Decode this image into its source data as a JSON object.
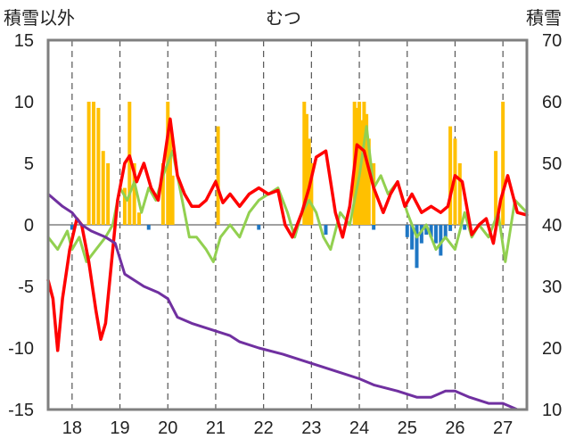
{
  "chart_data": {
    "type": "line",
    "title": "むつ",
    "ylabel_left": "積雪以外",
    "ylabel_right": "積雪",
    "ylim_left": [
      -15,
      15
    ],
    "ylim_right": [
      10,
      70
    ],
    "yticks_left": [
      "15",
      "10",
      "5",
      "0",
      "-5",
      "-10",
      "-15"
    ],
    "yticks_right": [
      "70",
      "60",
      "50",
      "40",
      "30",
      "20",
      "10"
    ],
    "xlim": [
      17.5,
      27.5
    ],
    "xticks": [
      "18",
      "19",
      "20",
      "21",
      "22",
      "23",
      "24",
      "25",
      "26",
      "27"
    ],
    "grid": "vertical dashed at each day",
    "bars_yellow": {
      "color": "#FFC000",
      "x": [
        18.35,
        18.45,
        18.55,
        18.65,
        18.75,
        19.1,
        19.2,
        19.3,
        19.4,
        19.9,
        20.0,
        20.05,
        20.1,
        21.05,
        22.85,
        22.9,
        22.95,
        23.0,
        23.9,
        23.95,
        24.0,
        24.05,
        24.1,
        24.15,
        24.2,
        24.3,
        25.9,
        26.0,
        26.1,
        26.85,
        27.0
      ],
      "values": [
        10,
        10,
        9.5,
        6,
        5,
        3,
        10,
        5,
        1,
        5,
        10,
        8,
        4,
        8,
        10,
        9,
        7,
        5,
        10,
        9.5,
        10,
        8.5,
        10,
        9,
        7,
        5,
        8,
        7,
        5,
        6,
        10
      ]
    },
    "bars_blue": {
      "color": "#1F77C4",
      "x": [
        18.0,
        19.6,
        21.9,
        23.3,
        24.3,
        25.0,
        25.1,
        25.2,
        25.3,
        25.4,
        25.5,
        25.6,
        25.7,
        25.8,
        25.9,
        26.2
      ],
      "values": [
        -0.4,
        -0.4,
        -0.4,
        -0.8,
        -0.4,
        -1.0,
        -2.0,
        -3.5,
        -1.5,
        -0.8,
        -1.0,
        -1.5,
        -2.5,
        -1.0,
        -0.5,
        -0.4
      ]
    },
    "series": [
      {
        "axis": "left",
        "color": "#FF0000",
        "x": [
          17.5,
          17.6,
          17.7,
          17.8,
          17.95,
          18.1,
          18.2,
          18.35,
          18.5,
          18.6,
          18.7,
          18.8,
          18.95,
          19.1,
          19.2,
          19.35,
          19.5,
          19.65,
          19.8,
          19.95,
          20.05,
          20.2,
          20.35,
          20.5,
          20.65,
          20.8,
          21.0,
          21.15,
          21.3,
          21.5,
          21.7,
          21.9,
          22.1,
          22.3,
          22.45,
          22.6,
          22.8,
          22.95,
          23.1,
          23.3,
          23.5,
          23.65,
          23.8,
          23.95,
          24.1,
          24.3,
          24.5,
          24.65,
          24.8,
          24.95,
          25.1,
          25.3,
          25.5,
          25.7,
          25.85,
          26.0,
          26.15,
          26.35,
          26.5,
          26.65,
          26.8,
          26.95,
          27.1,
          27.3,
          27.5
        ],
        "values": [
          -4.5,
          -6,
          -10.2,
          -6,
          -2,
          0.5,
          0,
          -3,
          -7,
          -9.3,
          -8,
          -4,
          2,
          5,
          5.6,
          3.5,
          5,
          3,
          2,
          6,
          8.6,
          4,
          2.5,
          1.5,
          1.5,
          2,
          3.5,
          1.8,
          2.5,
          1.5,
          2.5,
          3,
          2.5,
          2.8,
          0,
          -1,
          1,
          3,
          5.5,
          6,
          1,
          -1,
          1.5,
          6.5,
          6,
          3,
          1,
          2.5,
          3.5,
          1.5,
          2.5,
          1,
          1.5,
          1,
          1.5,
          4,
          3.5,
          -0.8,
          0,
          0.5,
          -1.5,
          2,
          4,
          1,
          0.8
        ]
      },
      {
        "axis": "left",
        "color": "#92D050",
        "x": [
          17.5,
          17.7,
          17.9,
          18.0,
          18.15,
          18.3,
          18.5,
          18.7,
          18.85,
          19.0,
          19.15,
          19.3,
          19.45,
          19.6,
          19.75,
          19.9,
          20.1,
          20.3,
          20.45,
          20.6,
          20.8,
          20.95,
          21.1,
          21.3,
          21.5,
          21.7,
          21.9,
          22.1,
          22.3,
          22.5,
          22.65,
          22.8,
          22.95,
          23.1,
          23.25,
          23.4,
          23.6,
          23.8,
          24.0,
          24.15,
          24.3,
          24.45,
          24.6,
          24.8,
          25.0,
          25.2,
          25.4,
          25.6,
          25.8,
          26.0,
          26.2,
          26.35,
          26.5,
          26.7,
          26.9,
          27.05,
          27.25,
          27.5
        ],
        "values": [
          -1,
          -2,
          -0.5,
          -2,
          -1,
          -3,
          -2,
          -1,
          0,
          3,
          2,
          3.5,
          1,
          3,
          2,
          4,
          6,
          2,
          -1,
          -1,
          -2,
          -3,
          -1,
          0,
          -1,
          1,
          2,
          2.5,
          3,
          1,
          -1,
          1,
          2,
          1,
          -1,
          -2,
          1,
          0,
          4,
          8,
          3,
          4,
          2.5,
          3.5,
          1,
          -1,
          0,
          -2,
          -1,
          -2,
          1,
          -1,
          0,
          -1,
          1,
          -3,
          2,
          1
        ]
      },
      {
        "axis": "right",
        "color": "#7030A0",
        "x": [
          17.5,
          17.8,
          18.0,
          18.2,
          18.4,
          18.7,
          18.9,
          19.1,
          19.3,
          19.5,
          19.8,
          20.0,
          20.2,
          20.5,
          20.9,
          21.3,
          21.5,
          21.9,
          22.4,
          22.8,
          23.2,
          23.6,
          24.0,
          24.3,
          24.8,
          25.2,
          25.5,
          25.8,
          26.0,
          26.3,
          26.7,
          27.0,
          27.3,
          27.5
        ],
        "values": [
          45,
          43,
          42,
          40,
          39,
          38,
          37,
          32,
          31,
          30,
          29,
          28,
          25,
          24,
          23,
          22,
          21,
          20,
          19,
          18,
          17,
          16,
          15,
          14,
          13,
          12,
          12,
          13,
          13,
          12,
          11,
          11,
          10,
          10
        ]
      }
    ]
  }
}
